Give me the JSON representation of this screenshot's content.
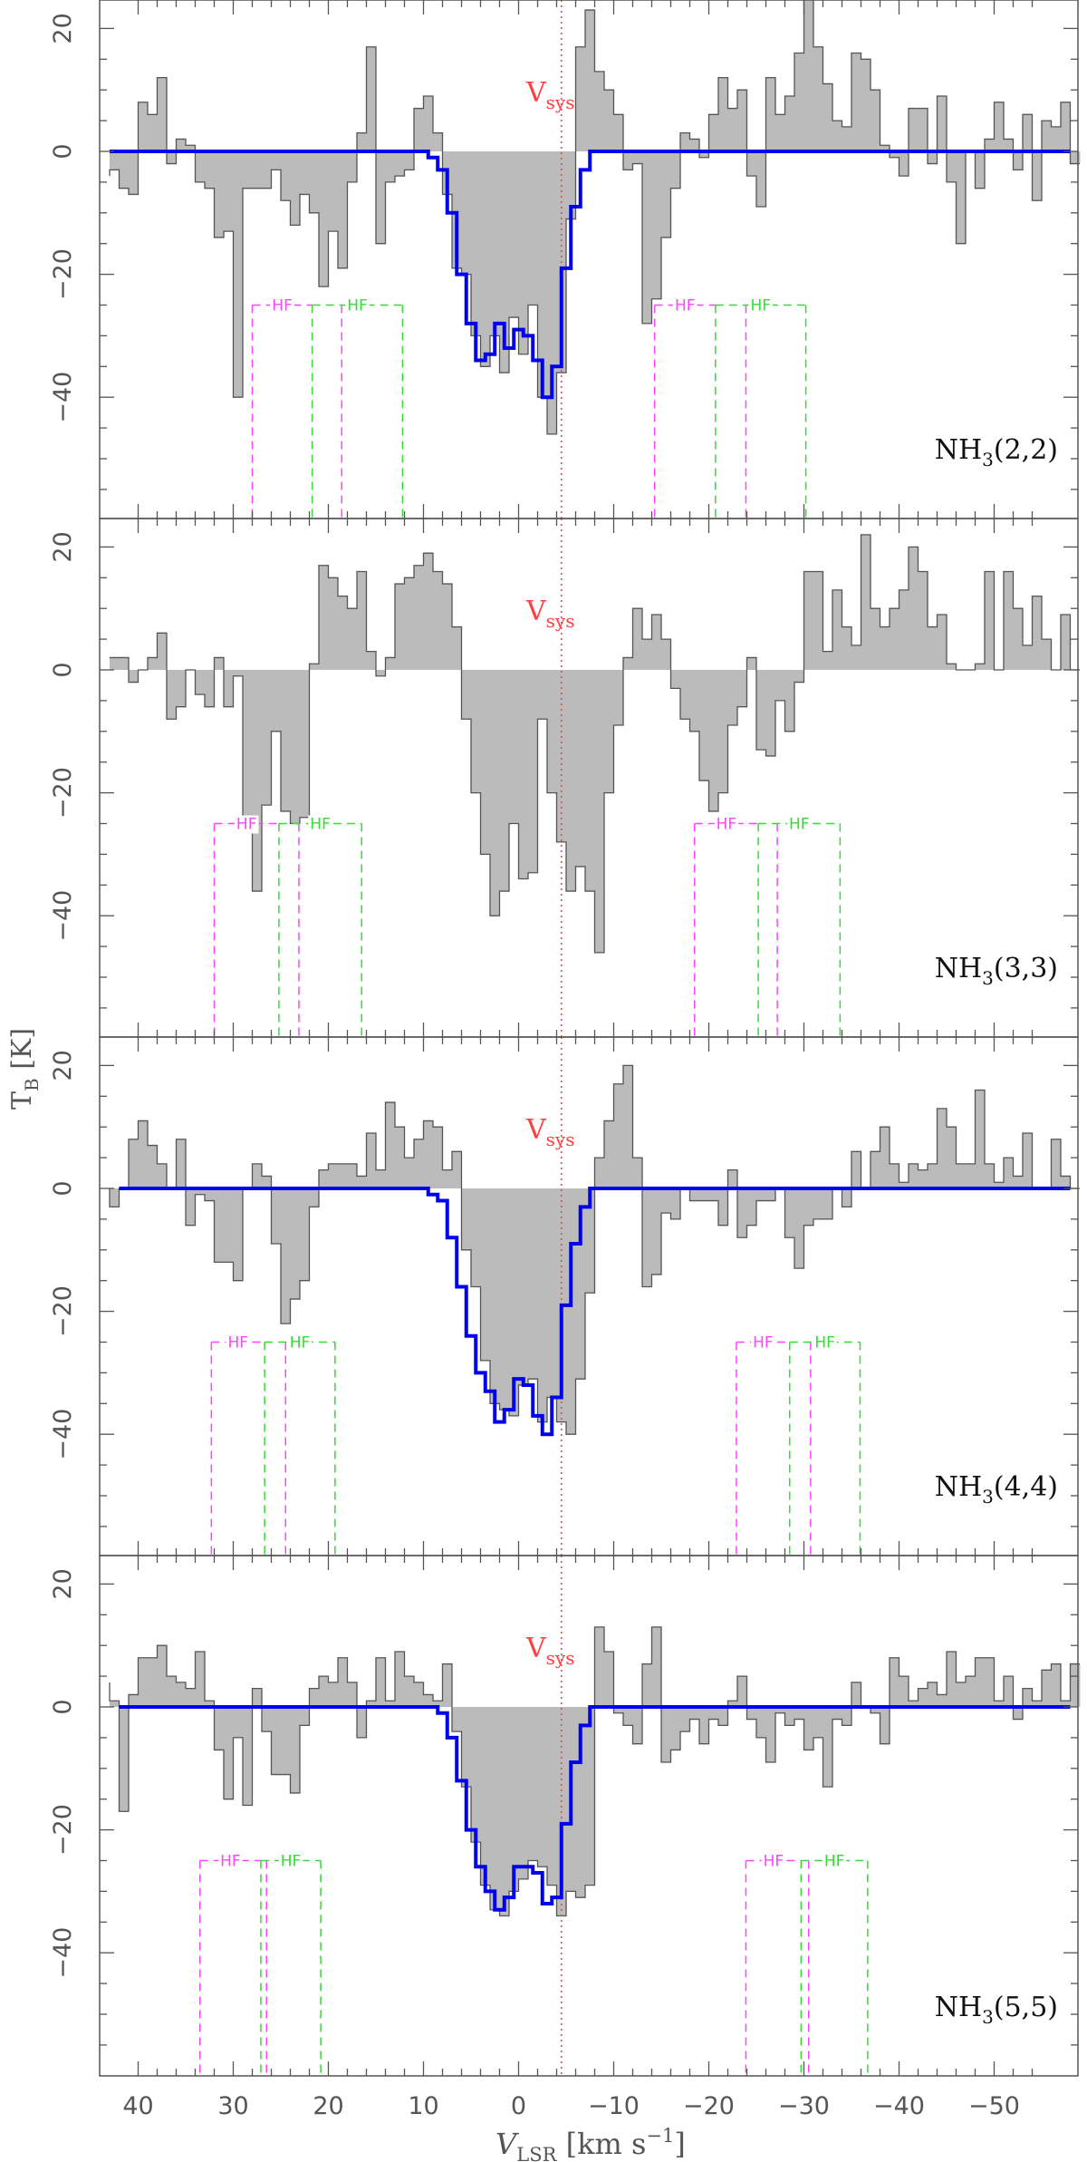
{
  "chart_data": {
    "type": "line",
    "x_axis": {
      "label_main": "V",
      "label_sub": "LSR",
      "label_unit": " [km s",
      "label_exp": "−1",
      "label_close": "]",
      "xlim": [
        44,
        -59
      ],
      "ticks": [
        40,
        30,
        20,
        10,
        0,
        -10,
        -20,
        -30,
        -40,
        -50
      ],
      "tick_labels": [
        "40",
        "30",
        "20",
        "10",
        "0",
        "−10",
        "−20",
        "−30",
        "−40",
        "−50"
      ]
    },
    "y_axis": {
      "label_main": "T",
      "label_sub": "B",
      "label_unit": " [K]",
      "ylim": [
        -60,
        25
      ],
      "ticks": [
        20,
        0,
        -20,
        -40
      ],
      "tick_labels": [
        "20",
        "0",
        "−20",
        "−40"
      ]
    },
    "vsys": {
      "x": -4.5,
      "label_main": "V",
      "label_sub": "sys",
      "color": "#ff4040"
    },
    "colors": {
      "fill": "#bbbbbb",
      "edge": "#555555",
      "fit": "#0000ee",
      "hf_magenta": "#ff44ff",
      "hf_green": "#33dd33"
    },
    "hf_label": "HF",
    "x_edges": [
      -59.0,
      -58.0,
      -57.0,
      -56.0,
      -55.0,
      -54.0,
      -53.0,
      -52.0,
      -51.0,
      -50.0,
      -49.0,
      -48.0,
      -47.0,
      -46.0,
      -45.0,
      -44.0,
      -43.0,
      -42.0,
      -41.0,
      -40.0,
      -39.0,
      -38.0,
      -37.0,
      -36.0,
      -35.0,
      -34.0,
      -33.0,
      -32.0,
      -31.0,
      -30.0,
      -29.0,
      -28.0,
      -27.0,
      -26.0,
      -25.0,
      -24.0,
      -23.0,
      -22.0,
      -21.0,
      -20.0,
      -19.0,
      -18.0,
      -17.0,
      -16.0,
      -15.0,
      -14.0,
      -13.0,
      -12.0,
      -11.0,
      -10.0,
      -9.0,
      -8.0,
      -7.0,
      -6.0,
      -5.0,
      -4.0,
      -3.0,
      -2.0,
      -1.0,
      0.0,
      1.0,
      2.0,
      3.0,
      4.0,
      5.0,
      6.0,
      7.0,
      8.0,
      9.0,
      10.0,
      11.0,
      12.0,
      13.0,
      14.0,
      15.0,
      16.0,
      17.0,
      18.0,
      19.0,
      20.0,
      21.0,
      22.0,
      23.0,
      24.0,
      25.0,
      26.0,
      27.0,
      28.0,
      29.0,
      30.0,
      31.0,
      32.0,
      33.0,
      34.0,
      35.0,
      36.0,
      37.0,
      38.0,
      39.0,
      40.0,
      41.0,
      42.0,
      43.0
    ],
    "panels": [
      {
        "transition_main": "NH",
        "transition_sub": "3",
        "transition_rest": "(2,2)",
        "values": [
          -2,
          8,
          4,
          5,
          -8,
          6,
          -3,
          2,
          8,
          2,
          -6,
          0,
          -15,
          -5,
          9,
          -2,
          7,
          7,
          -4,
          -1,
          1,
          10,
          15,
          16,
          4,
          5,
          11,
          17,
          25,
          16,
          9,
          6,
          12,
          -9,
          -4,
          10,
          7,
          12,
          6,
          -1,
          2,
          3,
          -6,
          -14,
          -24,
          -28,
          -2,
          -3,
          6,
          10,
          13,
          23,
          17,
          -11,
          -36,
          -46,
          -40,
          -25,
          -33,
          -27,
          -36,
          -30,
          -35,
          -30,
          -20,
          -19,
          -7,
          3,
          9,
          7,
          -3,
          -4,
          -5,
          -15,
          17,
          3,
          -5,
          -19,
          -13,
          -22,
          -10,
          -7,
          -12,
          -8,
          -3,
          -6,
          -6,
          -6,
          -40,
          -13,
          -14,
          -6,
          -5,
          1,
          2,
          -2,
          12,
          6,
          8,
          -7,
          -6,
          -3,
          -4
        ],
        "fit_x": [
          -58,
          -8.5,
          -7.5,
          -6.5,
          -5.5,
          -4.5,
          -3.5,
          -2.5,
          -1.5,
          -0.5,
          0.5,
          1.5,
          2.5,
          3.5,
          4.5,
          5.5,
          6.5,
          7.5,
          8.5,
          9.5,
          43
        ],
        "fit_y": [
          0,
          0,
          -3,
          -9,
          -19,
          -35,
          -40,
          -34,
          -30,
          -29,
          -32,
          -28,
          -33,
          -34,
          -28,
          -20,
          -10,
          -3,
          -1,
          0,
          0
        ],
        "hf_x": [
          28.0,
          21.7,
          18.6,
          12.2,
          -14.3,
          -20.7,
          -23.9,
          -30.2
        ]
      },
      {
        "transition_main": "NH",
        "transition_sub": "3",
        "transition_rest": "(3,3)",
        "values": [
          0,
          9,
          0,
          5,
          12,
          4,
          10,
          16,
          0,
          16,
          1,
          0,
          0,
          1,
          9,
          7,
          16,
          20,
          13,
          10,
          7,
          10,
          22,
          4,
          7,
          13,
          3,
          16,
          16,
          -2,
          -10,
          -5,
          -14,
          -13,
          2,
          -6,
          -9,
          -20,
          -23,
          -18,
          -10,
          -8,
          -3,
          5,
          9,
          5,
          10,
          2,
          -9,
          -20,
          -46,
          -36,
          -32,
          -36,
          -28,
          -20,
          -8,
          -33,
          -34,
          -25,
          -36,
          -40,
          -30,
          -20,
          -8,
          7,
          14,
          16,
          19,
          17,
          15,
          14,
          2,
          -1,
          3,
          16,
          10,
          12,
          15,
          17,
          1,
          -24,
          -25,
          -23,
          -10,
          -22,
          -36,
          -25,
          -1,
          -6,
          2,
          -6,
          -4,
          0,
          -6,
          -8,
          6,
          2,
          0,
          -2,
          2,
          2
        ],
        "fit_x": [],
        "fit_y": [],
        "hf_x": [
          32.0,
          25.2,
          23.1,
          16.5,
          -18.5,
          -25.2,
          -27.2,
          -33.8
        ]
      },
      {
        "transition_main": "NH",
        "transition_sub": "3",
        "transition_rest": "(4,4)",
        "values": [
          0,
          2,
          8,
          0,
          0,
          9,
          2,
          5,
          1,
          4,
          16,
          4,
          4,
          10,
          13,
          4,
          3,
          4,
          1,
          4,
          10,
          6,
          0,
          6,
          -3,
          0,
          -5,
          -5,
          -6,
          -13,
          -8,
          0,
          -2,
          -2,
          -6,
          -8,
          3,
          -6,
          -2,
          -2,
          -2,
          0,
          -5,
          -4,
          -14,
          -16,
          5,
          20,
          17,
          11,
          5,
          -17,
          -31,
          -40,
          -38,
          -34,
          -38,
          -31,
          -32,
          -37,
          -36,
          -35,
          -28,
          -16,
          -10,
          6,
          3,
          10,
          11,
          8,
          5,
          10,
          14,
          3,
          9,
          2,
          4,
          4,
          4,
          3,
          -3,
          -15,
          -18,
          -22,
          -9,
          2,
          4,
          0,
          -15,
          -12,
          -12,
          -2,
          -1,
          -6,
          8,
          0,
          4,
          7,
          11,
          8,
          0,
          -3,
          0
        ],
        "fit_x": [
          -58,
          -8.5,
          -7.5,
          -6.5,
          -5.5,
          -4.5,
          -3.5,
          -2.5,
          -1.5,
          -0.5,
          0.5,
          1.5,
          2.5,
          3.5,
          4.5,
          5.5,
          6.5,
          7.5,
          8.5,
          9.5,
          42
        ],
        "fit_y": [
          0,
          0,
          -3,
          -9,
          -19,
          -34,
          -40,
          -37,
          -32,
          -31,
          -36,
          -38,
          -33,
          -30,
          -24,
          -16,
          -8,
          -2,
          -1,
          0,
          0
        ],
        "hf_x": [
          32.3,
          26.7,
          24.5,
          19.3,
          -22.9,
          -28.5,
          -30.7,
          -35.9
        ]
      },
      {
        "transition_main": "NH",
        "transition_sub": "3",
        "transition_rest": "(5,5)",
        "values": [
          7,
          1,
          7,
          6,
          1,
          3,
          -2,
          5,
          1,
          8,
          8,
          5,
          4,
          9,
          2,
          4,
          3,
          1,
          5,
          8,
          -6,
          -1,
          0,
          4,
          -3,
          -2,
          -13,
          -5,
          -7,
          -2,
          -3,
          -1,
          -9,
          -5,
          -2,
          5,
          1,
          -3,
          -2,
          -6,
          -2,
          -4,
          -7,
          -9,
          13,
          7,
          -6,
          -3,
          -1,
          9,
          13,
          -29,
          -31,
          -30,
          -34,
          -29,
          -26,
          -25,
          -28,
          -30,
          -34,
          -33,
          -29,
          -22,
          -13,
          -4,
          7,
          1,
          2,
          4,
          5,
          9,
          1,
          8,
          1,
          -5,
          4,
          8,
          4,
          5,
          3,
          -3,
          -14,
          -11,
          -11,
          -4,
          3,
          -16,
          -5,
          -15,
          -7,
          1,
          9,
          3,
          4,
          5,
          10,
          8,
          8,
          2,
          -17,
          1,
          4
        ],
        "fit_x": [
          -58,
          -8.5,
          -7.5,
          -6.5,
          -5.5,
          -4.5,
          -3.5,
          -2.5,
          -1.5,
          -0.5,
          0.5,
          1.5,
          2.5,
          3.5,
          4.5,
          5.5,
          6.5,
          7.5,
          8.5,
          9.5,
          42
        ],
        "fit_y": [
          0,
          0,
          -3,
          -9,
          -19,
          -31,
          -32,
          -27,
          -26,
          -26,
          -31,
          -33,
          -30,
          -26,
          -20,
          -12,
          -5,
          -1,
          0,
          0,
          0
        ],
        "hf_x": [
          33.5,
          27.1,
          26.5,
          20.8,
          -23.9,
          -29.7,
          -30.5,
          -36.7
        ]
      }
    ]
  }
}
